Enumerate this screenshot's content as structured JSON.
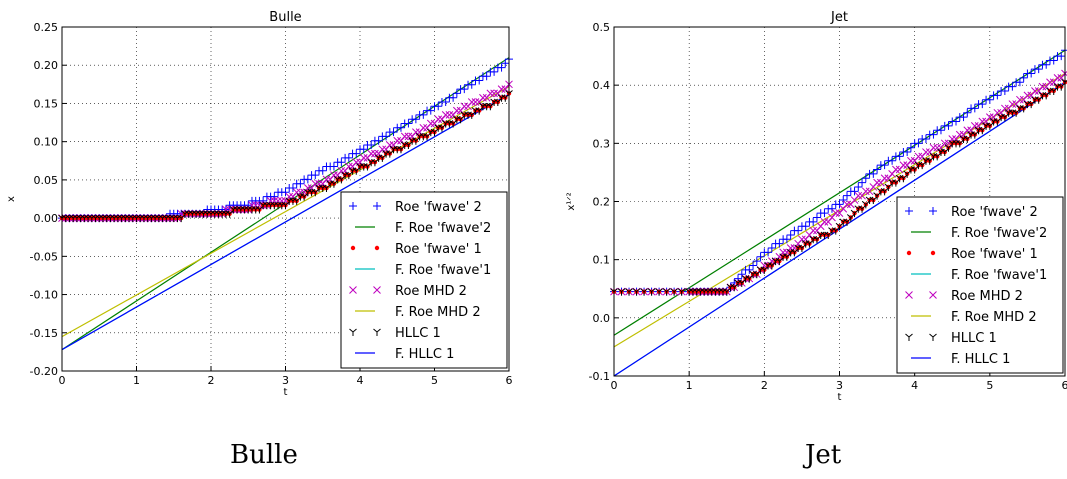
{
  "chart_data": [
    {
      "type": "scatter",
      "title": "Bulle",
      "caption": "Bulle",
      "xlabel": "t",
      "ylabel": "x",
      "xlim": [
        0,
        6
      ],
      "ylim": [
        -0.2,
        0.25
      ],
      "xticks": [
        "0",
        "1",
        "2",
        "3",
        "4",
        "5",
        "6"
      ],
      "yticks": [
        "-0.20",
        "-0.15",
        "-0.10",
        "-0.05",
        "0.00",
        "0.05",
        "0.10",
        "0.15",
        "0.20",
        "0.25"
      ],
      "grid": true,
      "legend_position": "lower-right",
      "legend": [
        {
          "label": "Roe 'fwave' 2",
          "marker": "plus",
          "color": "#0000ff"
        },
        {
          "label": "F. Roe 'fwave'2",
          "marker": "line",
          "color": "#008000"
        },
        {
          "label": "Roe 'fwave' 1",
          "marker": "dot",
          "color": "#ff0000"
        },
        {
          "label": "F. Roe 'fwave'1",
          "marker": "line",
          "color": "#00bfbf"
        },
        {
          "label": "Roe MHD 2",
          "marker": "x",
          "color": "#bf00bf"
        },
        {
          "label": "F. Roe MHD 2",
          "marker": "line",
          "color": "#bfbf00"
        },
        {
          "label": "HLLC 1",
          "marker": "tri",
          "color": "#000000"
        },
        {
          "label": "F. HLLC 1",
          "marker": "line",
          "color": "#0000ff"
        }
      ],
      "fit_lines": [
        {
          "name": "F. Roe 'fwave'2",
          "color": "#008000",
          "x": [
            0,
            6
          ],
          "y": [
            -0.172,
            0.21
          ]
        },
        {
          "name": "F. Roe 'fwave'1",
          "color": "#00bfbf",
          "x": [
            0,
            6
          ],
          "y": [
            -0.172,
            0.162
          ]
        },
        {
          "name": "F. Roe MHD 2",
          "color": "#bfbf00",
          "x": [
            0,
            6
          ],
          "y": [
            -0.155,
            0.172
          ]
        },
        {
          "name": "F. HLLC 1",
          "color": "#0000ff",
          "x": [
            0,
            6
          ],
          "y": [
            -0.172,
            0.162
          ]
        }
      ],
      "series": [
        {
          "name": "Roe 'fwave' 2",
          "marker": "plus",
          "color": "#0000ff",
          "points": [
            [
              0,
              0.003
            ],
            [
              0.5,
              0.003
            ],
            [
              1.0,
              0.003
            ],
            [
              1.5,
              0.006
            ],
            [
              2.0,
              0.012
            ],
            [
              2.5,
              0.022
            ],
            [
              3.0,
              0.037
            ],
            [
              3.5,
              0.065
            ],
            [
              4.0,
              0.092
            ],
            [
              4.5,
              0.12
            ],
            [
              5.0,
              0.148
            ],
            [
              5.5,
              0.178
            ],
            [
              6.0,
              0.208
            ]
          ]
        },
        {
          "name": "Roe MHD 2",
          "marker": "x",
          "color": "#bf00bf",
          "points": [
            [
              0,
              0.003
            ],
            [
              0.5,
              0.003
            ],
            [
              1.0,
              0.003
            ],
            [
              1.5,
              0.005
            ],
            [
              2.0,
              0.009
            ],
            [
              2.5,
              0.016
            ],
            [
              3.0,
              0.028
            ],
            [
              3.5,
              0.05
            ],
            [
              4.0,
              0.077
            ],
            [
              4.5,
              0.102
            ],
            [
              5.0,
              0.128
            ],
            [
              5.5,
              0.152
            ],
            [
              6.0,
              0.175
            ]
          ]
        },
        {
          "name": "Roe 'fwave' 1",
          "marker": "dot",
          "color": "#ff0000",
          "points": [
            [
              0,
              0.003
            ],
            [
              0.5,
              0.003
            ],
            [
              1.0,
              0.003
            ],
            [
              1.5,
              0.005
            ],
            [
              2.0,
              0.008
            ],
            [
              2.5,
              0.014
            ],
            [
              3.0,
              0.022
            ],
            [
              3.5,
              0.042
            ],
            [
              4.0,
              0.068
            ],
            [
              4.5,
              0.093
            ],
            [
              5.0,
              0.117
            ],
            [
              5.5,
              0.14
            ],
            [
              6.0,
              0.163
            ]
          ]
        },
        {
          "name": "HLLC 1",
          "marker": "tri",
          "color": "#000000",
          "points": [
            [
              0,
              0.003
            ],
            [
              0.5,
              0.003
            ],
            [
              1.0,
              0.003
            ],
            [
              1.5,
              0.005
            ],
            [
              2.0,
              0.008
            ],
            [
              2.5,
              0.014
            ],
            [
              3.0,
              0.022
            ],
            [
              3.5,
              0.042
            ],
            [
              4.0,
              0.068
            ],
            [
              4.5,
              0.093
            ],
            [
              5.0,
              0.117
            ],
            [
              5.5,
              0.14
            ],
            [
              6.0,
              0.163
            ]
          ]
        }
      ]
    },
    {
      "type": "scatter",
      "title": "Jet",
      "caption": "Jet",
      "xlabel": "t",
      "ylabel": "x¹ᐟ²",
      "xlim": [
        0,
        6
      ],
      "ylim": [
        -0.1,
        0.5
      ],
      "xticks": [
        "0",
        "1",
        "2",
        "3",
        "4",
        "5",
        "6"
      ],
      "yticks": [
        "-0.1",
        "0.0",
        "0.1",
        "0.2",
        "0.3",
        "0.4",
        "0.5"
      ],
      "grid": true,
      "legend_position": "lower-right",
      "legend": [
        {
          "label": "Roe 'fwave' 2",
          "marker": "plus",
          "color": "#0000ff"
        },
        {
          "label": "F. Roe 'fwave'2",
          "marker": "line",
          "color": "#008000"
        },
        {
          "label": "Roe 'fwave' 1",
          "marker": "dot",
          "color": "#ff0000"
        },
        {
          "label": "F. Roe 'fwave'1",
          "marker": "line",
          "color": "#00bfbf"
        },
        {
          "label": "Roe MHD 2",
          "marker": "x",
          "color": "#bf00bf"
        },
        {
          "label": "F. Roe MHD 2",
          "marker": "line",
          "color": "#bfbf00"
        },
        {
          "label": "HLLC 1",
          "marker": "tri",
          "color": "#000000"
        },
        {
          "label": "F. HLLC 1",
          "marker": "line",
          "color": "#0000ff"
        }
      ],
      "fit_lines": [
        {
          "name": "F. Roe 'fwave'2",
          "color": "#008000",
          "x": [
            0,
            6
          ],
          "y": [
            -0.03,
            0.46
          ]
        },
        {
          "name": "F. Roe 'fwave'1",
          "color": "#00bfbf",
          "x": [
            0,
            6
          ],
          "y": [
            -0.1,
            0.405
          ]
        },
        {
          "name": "F. Roe MHD 2",
          "color": "#bfbf00",
          "x": [
            0,
            6
          ],
          "y": [
            -0.05,
            0.42
          ]
        },
        {
          "name": "F. HLLC 1",
          "color": "#0000ff",
          "x": [
            0,
            6
          ],
          "y": [
            -0.1,
            0.405
          ]
        }
      ],
      "series": [
        {
          "name": "Roe 'fwave' 2",
          "marker": "plus",
          "color": "#0000ff",
          "points": [
            [
              0,
              0.05
            ],
            [
              1.0,
              0.05
            ],
            [
              1.5,
              0.05
            ],
            [
              2.0,
              0.115
            ],
            [
              2.5,
              0.16
            ],
            [
              3.0,
              0.2
            ],
            [
              3.5,
              0.26
            ],
            [
              4.0,
              0.3
            ],
            [
              4.5,
              0.34
            ],
            [
              5.0,
              0.38
            ],
            [
              5.5,
              0.42
            ],
            [
              6.0,
              0.46
            ]
          ]
        },
        {
          "name": "Roe MHD 2",
          "marker": "x",
          "color": "#bf00bf",
          "points": [
            [
              0,
              0.05
            ],
            [
              1.0,
              0.05
            ],
            [
              1.5,
              0.05
            ],
            [
              2.0,
              0.09
            ],
            [
              2.5,
              0.135
            ],
            [
              3.0,
              0.185
            ],
            [
              3.5,
              0.235
            ],
            [
              4.0,
              0.275
            ],
            [
              4.5,
              0.31
            ],
            [
              5.0,
              0.345
            ],
            [
              5.5,
              0.385
            ],
            [
              6.0,
              0.42
            ]
          ]
        },
        {
          "name": "Roe 'fwave' 1",
          "marker": "dot",
          "color": "#ff0000",
          "points": [
            [
              0,
              0.05
            ],
            [
              1.0,
              0.05
            ],
            [
              1.5,
              0.05
            ],
            [
              2.0,
              0.088
            ],
            [
              2.5,
              0.125
            ],
            [
              3.0,
              0.16
            ],
            [
              3.5,
              0.215
            ],
            [
              4.0,
              0.26
            ],
            [
              4.5,
              0.3
            ],
            [
              5.0,
              0.335
            ],
            [
              5.5,
              0.37
            ],
            [
              6.0,
              0.405
            ]
          ]
        },
        {
          "name": "HLLC 1",
          "marker": "tri",
          "color": "#000000",
          "points": [
            [
              0,
              0.05
            ],
            [
              1.0,
              0.05
            ],
            [
              1.5,
              0.05
            ],
            [
              2.0,
              0.088
            ],
            [
              2.5,
              0.125
            ],
            [
              3.0,
              0.16
            ],
            [
              3.5,
              0.215
            ],
            [
              4.0,
              0.26
            ],
            [
              4.5,
              0.3
            ],
            [
              5.0,
              0.335
            ],
            [
              5.5,
              0.37
            ],
            [
              6.0,
              0.405
            ]
          ]
        }
      ]
    }
  ]
}
